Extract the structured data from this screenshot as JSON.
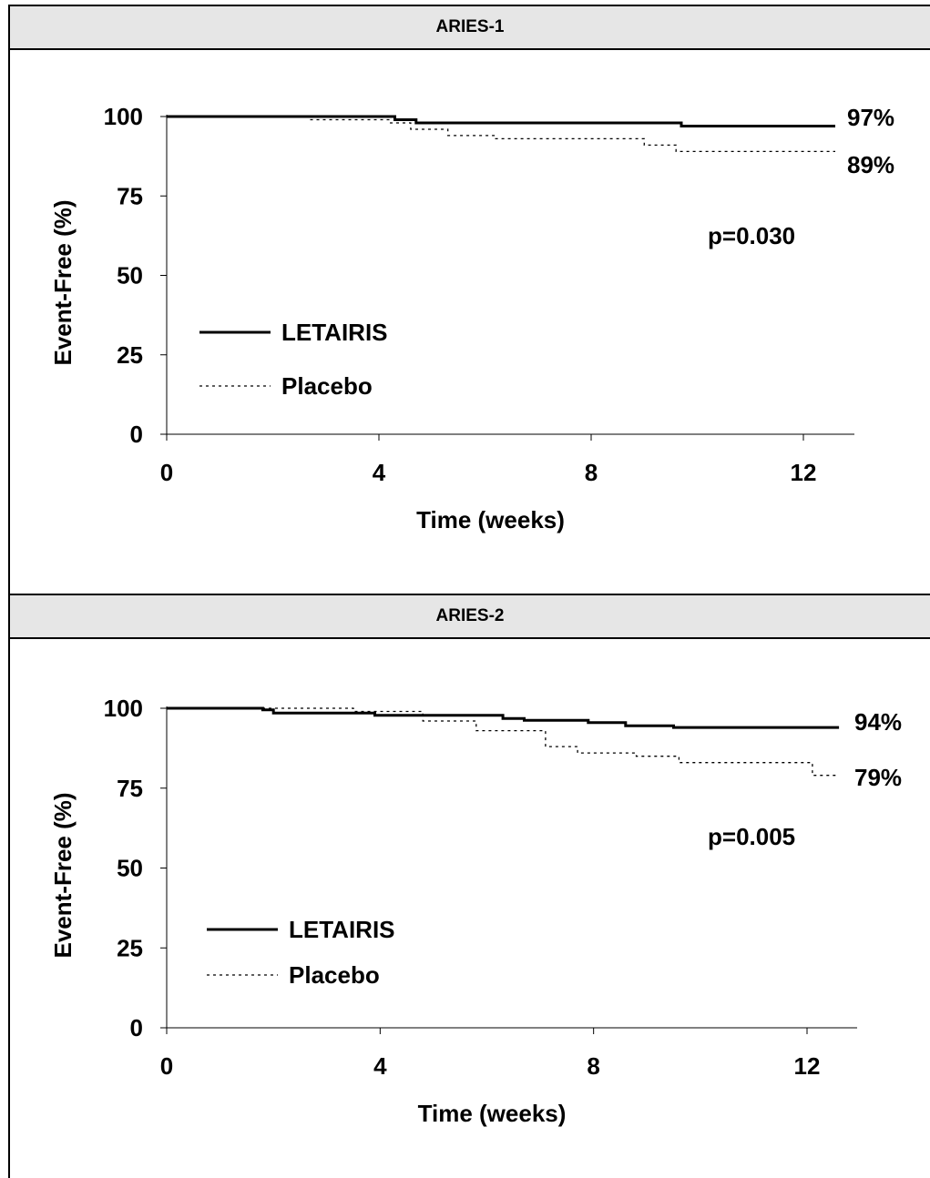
{
  "chart_data": [
    {
      "type": "line",
      "title": "ARIES-1",
      "xlabel": "Time (weeks)",
      "ylabel": "Event-Free (%)",
      "xlim": [
        0,
        13
      ],
      "ylim": [
        0,
        100
      ],
      "xticks": [
        "0",
        "4",
        "8",
        "12"
      ],
      "yticks": [
        "0",
        "25",
        "50",
        "75",
        "100"
      ],
      "p_value": "p=0.030",
      "legend": [
        "LETAIRIS",
        "Placebo"
      ],
      "series": [
        {
          "name": "LETAIRIS",
          "style": "solid",
          "end_label": "97%",
          "x": [
            0,
            4.3,
            4.3,
            4.7,
            4.7,
            9.7,
            9.7,
            12.6
          ],
          "y": [
            100,
            100,
            99,
            99,
            98,
            98,
            97,
            97
          ]
        },
        {
          "name": "Placebo",
          "style": "dotted",
          "end_label": "89%",
          "x": [
            0,
            2.7,
            2.7,
            4.2,
            4.2,
            4.6,
            4.6,
            5.3,
            5.3,
            6.2,
            6.2,
            9.0,
            9.0,
            9.6,
            9.6,
            12.6
          ],
          "y": [
            100,
            100,
            99,
            99,
            98,
            98,
            96,
            96,
            94,
            94,
            93,
            93,
            91,
            91,
            89,
            89
          ]
        }
      ]
    },
    {
      "type": "line",
      "title": "ARIES-2",
      "xlabel": "Time (weeks)",
      "ylabel": "Event-Free (%)",
      "xlim": [
        0,
        13
      ],
      "ylim": [
        0,
        100
      ],
      "xticks": [
        "0",
        "4",
        "8",
        "12"
      ],
      "yticks": [
        "0",
        "25",
        "50",
        "75",
        "100"
      ],
      "p_value": "p=0.005",
      "legend": [
        "LETAIRIS",
        "Placebo"
      ],
      "series": [
        {
          "name": "LETAIRIS",
          "style": "solid",
          "end_label": "94%",
          "x": [
            0,
            1.8,
            1.8,
            2.0,
            2.0,
            3.9,
            3.9,
            6.3,
            6.3,
            6.7,
            6.7,
            7.9,
            7.9,
            8.6,
            8.6,
            9.5,
            9.5,
            12.6
          ],
          "y": [
            100,
            100,
            99.5,
            99.5,
            98.5,
            98.5,
            97.8,
            97.8,
            96.8,
            96.8,
            96.2,
            96.2,
            95.5,
            95.5,
            94.5,
            94.5,
            94,
            94
          ]
        },
        {
          "name": "Placebo",
          "style": "dotted",
          "end_label": "79%",
          "x": [
            0,
            3.5,
            3.5,
            4.8,
            4.8,
            5.8,
            5.8,
            7.1,
            7.1,
            7.7,
            7.7,
            8.8,
            8.8,
            9.6,
            9.6,
            12.1,
            12.1,
            12.6
          ],
          "y": [
            100,
            100,
            99,
            99,
            96,
            96,
            93,
            93,
            88,
            88,
            86,
            86,
            85,
            85,
            83,
            83,
            79,
            79
          ]
        }
      ]
    }
  ]
}
